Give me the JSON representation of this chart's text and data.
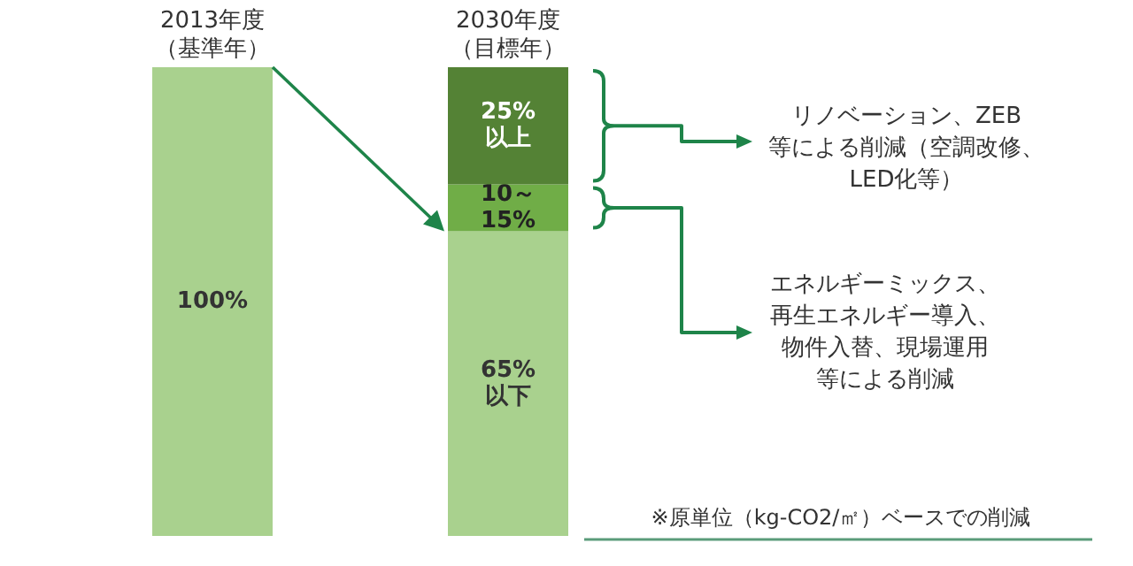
{
  "chart_data": {
    "type": "bar",
    "stacked": true,
    "categories": [
      "2013年度（基準年）",
      "2030年度（目標年）"
    ],
    "ylim": [
      0,
      100
    ],
    "tick_labels": "x",
    "series": [
      {
        "color": "#a9d18e",
        "values": [
          100,
          65
        ],
        "value_labels": [
          "100%",
          "65%\n以下"
        ]
      },
      {
        "color": "#70ad47",
        "values": [
          null,
          10
        ],
        "value_labels": [
          null,
          "10～\n15%"
        ]
      },
      {
        "color": "#548235",
        "values": [
          null,
          25
        ],
        "value_labels": [
          null,
          "25%\n以上"
        ]
      }
    ],
    "annotations": [
      "リノベーション、ZEB等による削減（空調改修、LED化等）",
      "エネルギーミックス、再生エネルギー導入、物件入替、現場運用等による削減",
      "※原単位（kg-CO2/㎡）ベースでの削減"
    ]
  }
}
